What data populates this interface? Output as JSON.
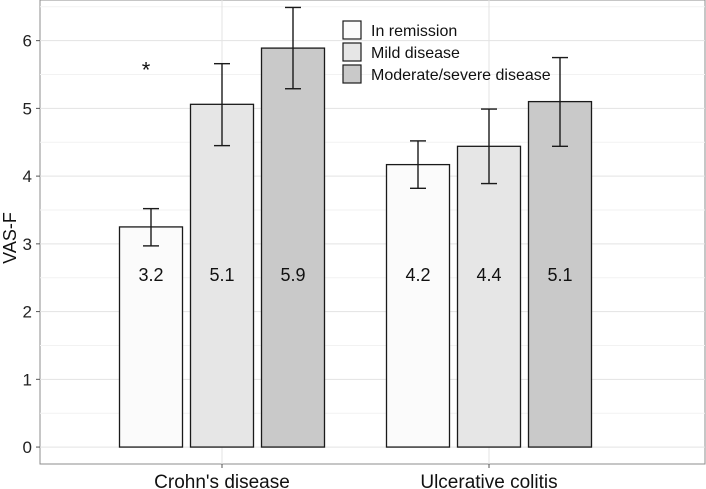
{
  "chart_data": {
    "type": "bar",
    "title": "",
    "xlabel": "",
    "ylabel": "VAS-F",
    "ylim": [
      -0.25,
      6.6
    ],
    "yticks": [
      0,
      1,
      2,
      3,
      4,
      5,
      6
    ],
    "grid": true,
    "legend_position": "top-right",
    "categories": [
      "Crohn's disease",
      "Ulcerative colitis"
    ],
    "series": [
      {
        "name": "In remission",
        "color": "#fbfbfb",
        "values": [
          3.25,
          4.17
        ],
        "labels": [
          "3.2",
          "4.2"
        ],
        "error_low": [
          2.97,
          3.82
        ],
        "error_high": [
          3.52,
          4.52
        ]
      },
      {
        "name": "Mild disease",
        "color": "#e6e6e6",
        "values": [
          5.06,
          4.44
        ],
        "labels": [
          "5.1",
          "4.4"
        ],
        "error_low": [
          4.45,
          3.89
        ],
        "error_high": [
          5.66,
          4.99
        ]
      },
      {
        "name": "Moderate/severe disease",
        "color": "#c9c9c9",
        "values": [
          5.89,
          5.1
        ],
        "labels": [
          "5.9",
          "5.1"
        ],
        "error_low": [
          5.29,
          4.44
        ],
        "error_high": [
          6.49,
          5.75
        ]
      }
    ],
    "annotations": [
      {
        "text": "*",
        "category": 0,
        "series": 0,
        "y": 5.5
      }
    ]
  }
}
